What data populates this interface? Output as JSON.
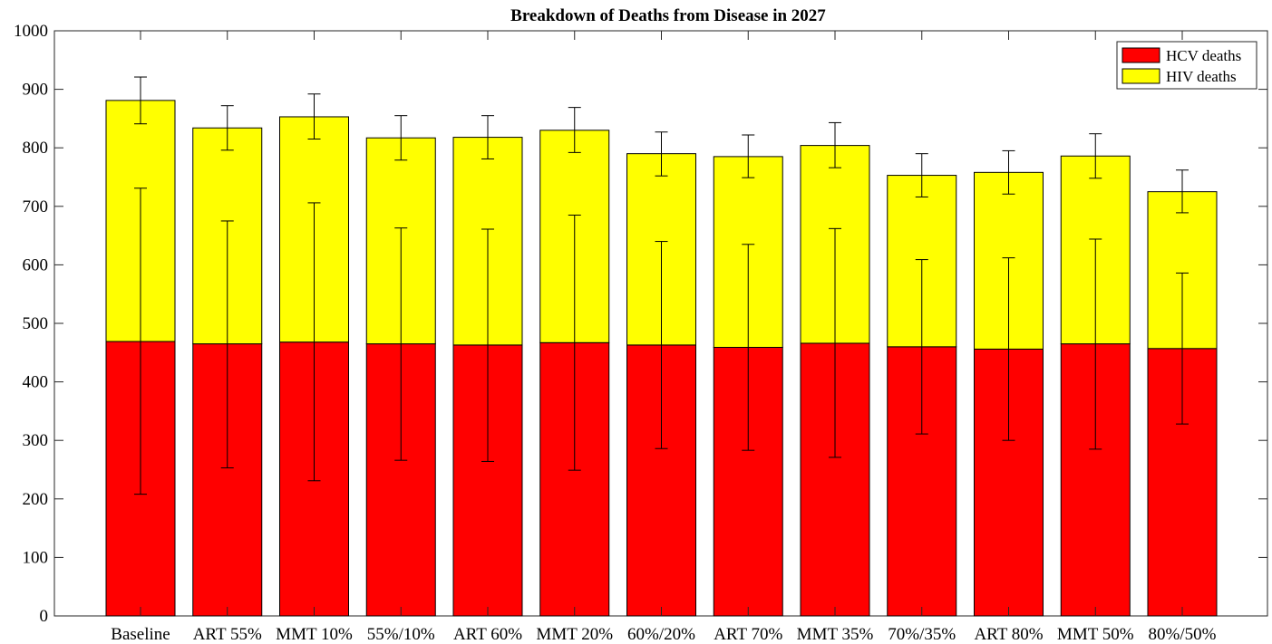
{
  "chart_data": {
    "type": "bar",
    "stacked": true,
    "title": "Breakdown of Deaths from Disease in 2027",
    "xlabel": "",
    "ylabel": "",
    "ylim": [
      0,
      1000
    ],
    "yticks": [
      0,
      100,
      200,
      300,
      400,
      500,
      600,
      700,
      800,
      900,
      1000
    ],
    "grid": false,
    "legend_position": "top-right",
    "categories": [
      "Baseline",
      "ART 55%",
      "MMT 10%",
      "55%/10%",
      "ART 60%",
      "MMT 20%",
      "60%/20%",
      "ART 70%",
      "MMT 35%",
      "70%/35%",
      "ART 80%",
      "MMT 50%",
      "80%/50%"
    ],
    "series": [
      {
        "name": "HCV deaths",
        "color": "#ff0000",
        "values": [
          469,
          465,
          468,
          465,
          463,
          467,
          463,
          459,
          466,
          460,
          456,
          465,
          457
        ],
        "error_low": [
          208,
          253,
          231,
          266,
          264,
          249,
          286,
          283,
          271,
          311,
          300,
          285,
          328
        ],
        "error_high": [
          731,
          675,
          706,
          663,
          661,
          685,
          640,
          635,
          662,
          609,
          612,
          644,
          586
        ]
      },
      {
        "name": "HIV deaths",
        "color": "#ffff00",
        "values": [
          412,
          369,
          385,
          352,
          355,
          363,
          327,
          326,
          338,
          293,
          302,
          321,
          268
        ],
        "total_error_low": [
          841,
          796,
          815,
          779,
          781,
          792,
          752,
          749,
          766,
          716,
          721,
          748,
          689
        ],
        "total_error_high": [
          921,
          872,
          892,
          855,
          855,
          869,
          827,
          822,
          843,
          790,
          795,
          824,
          762
        ]
      }
    ]
  }
}
